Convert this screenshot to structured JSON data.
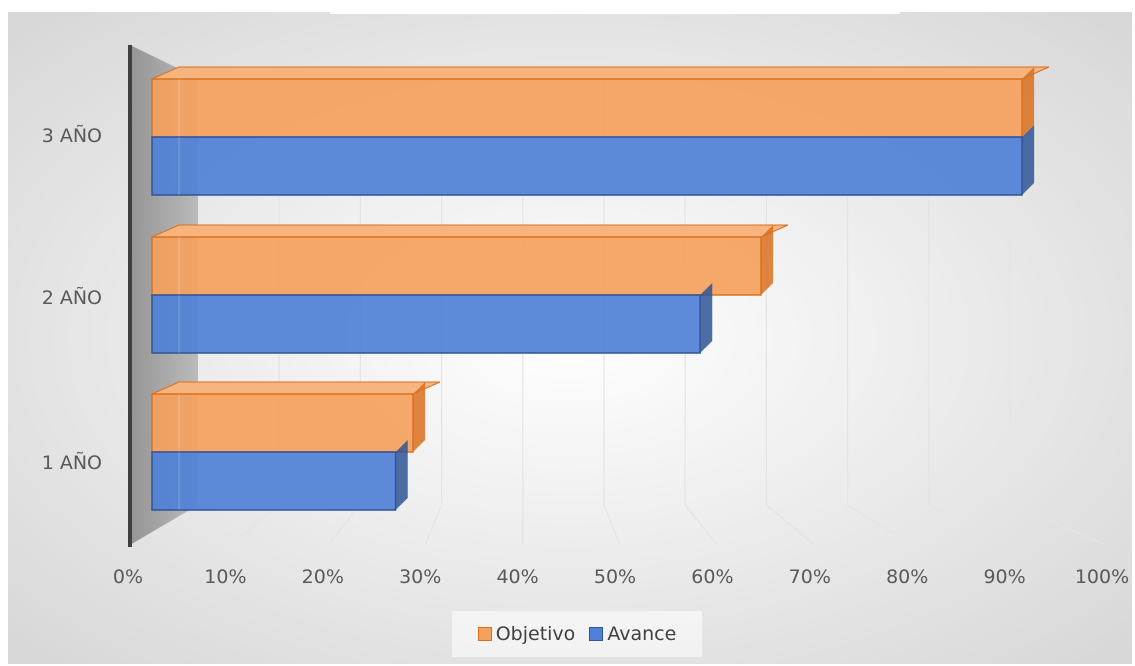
{
  "chart_data": {
    "type": "bar",
    "orientation": "horizontal",
    "categories": [
      "1 AÑO",
      "2 AÑO",
      "3 AÑO"
    ],
    "series": [
      {
        "name": "Objetivo",
        "color": "#F4A15D",
        "values": [
          30,
          70,
          100
        ]
      },
      {
        "name": "Avance",
        "color": "#4F81D6",
        "values": [
          28,
          63,
          100
        ]
      }
    ],
    "xlim": [
      0,
      100
    ],
    "x_ticks": [
      "0%",
      "10%",
      "20%",
      "30%",
      "40%",
      "50%",
      "60%",
      "70%",
      "80%",
      "90%",
      "100%"
    ],
    "grid": true,
    "legend": "bottom",
    "style": "3d"
  }
}
